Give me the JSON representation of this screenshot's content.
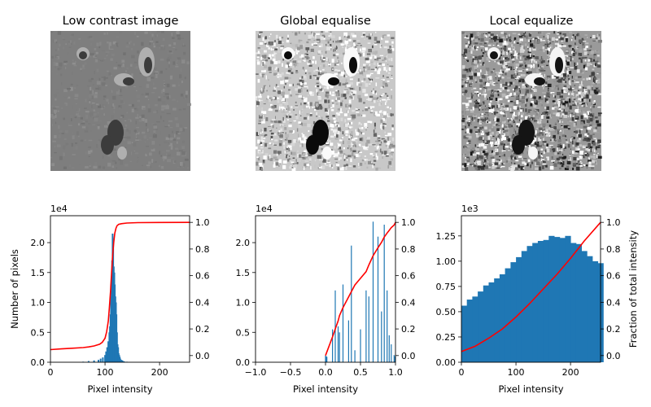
{
  "chart_data": [
    {
      "type": "image",
      "title": "Low contrast image",
      "style": "low-contrast grayscale lunar surface"
    },
    {
      "type": "image",
      "title": "Global equalise",
      "style": "high-contrast grayscale lunar surface"
    },
    {
      "type": "image",
      "title": "Local equalize",
      "style": "locally equalized grayscale lunar surface"
    },
    {
      "type": "bar",
      "xlabel": "Pixel intensity",
      "ylabel": "Number of pixels",
      "xlim": [
        0,
        255
      ],
      "ylim": [
        0,
        24500
      ],
      "y_exponent_label": "1e4",
      "xticks": [
        "0",
        "100",
        "200"
      ],
      "yticks": [
        "0.0",
        "0.5",
        "1.0",
        "1.5",
        "2.0"
      ],
      "y2ticks": [
        "0.0",
        "0.2",
        "0.4",
        "0.6",
        "0.8",
        "1.0"
      ],
      "histogram": {
        "color": "#1f77b4",
        "bins_x": [
          60,
          70,
          80,
          88,
          92,
          96,
          100,
          102,
          104,
          106,
          108,
          109,
          110,
          111,
          112,
          113,
          114,
          115,
          116,
          117,
          118,
          119,
          120,
          121,
          122,
          123,
          124,
          125,
          126,
          127,
          128,
          130,
          132,
          135,
          140
        ],
        "bins_y": [
          100,
          200,
          300,
          400,
          600,
          800,
          1200,
          1800,
          2500,
          3500,
          5000,
          6000,
          8000,
          11000,
          14000,
          17000,
          21500,
          20000,
          16000,
          15000,
          13000,
          11000,
          10000,
          8000,
          5000,
          3000,
          2500,
          1500,
          1200,
          900,
          600,
          400,
          300,
          150,
          80
        ]
      },
      "cdf": {
        "color": "#ff0000",
        "x": [
          0,
          20,
          40,
          60,
          70,
          80,
          90,
          95,
          100,
          103,
          106,
          108,
          110,
          112,
          114,
          116,
          118,
          120,
          122,
          125,
          130,
          140,
          160,
          200,
          255
        ],
        "y": [
          0.045,
          0.05,
          0.055,
          0.06,
          0.065,
          0.072,
          0.085,
          0.1,
          0.13,
          0.18,
          0.26,
          0.36,
          0.48,
          0.62,
          0.75,
          0.85,
          0.92,
          0.955,
          0.975,
          0.985,
          0.99,
          0.995,
          0.998,
          0.999,
          1.0
        ]
      }
    },
    {
      "type": "bar",
      "xlabel": "Pixel intensity",
      "xlim": [
        -1.0,
        1.0
      ],
      "ylim": [
        0,
        24500
      ],
      "y_exponent_label": "1e4",
      "xticks": [
        "−1.0",
        "−0.5",
        "0.0",
        "0.5",
        "1.0"
      ],
      "yticks": [
        "0.0",
        "0.5",
        "1.0",
        "1.5",
        "2.0"
      ],
      "y2ticks": [
        "0.0",
        "0.2",
        "0.4",
        "0.6",
        "0.8",
        "1.0"
      ],
      "histogram": {
        "color": "#1f77b4",
        "bins_x": [
          0.0,
          0.01,
          0.02,
          0.1,
          0.14,
          0.18,
          0.2,
          0.25,
          0.33,
          0.37,
          0.42,
          0.5,
          0.58,
          0.62,
          0.68,
          0.75,
          0.8,
          0.84,
          0.88,
          0.91,
          0.94,
          0.98,
          0.995
        ],
        "bins_y": [
          1100,
          1000,
          900,
          5500,
          12000,
          6000,
          5000,
          13000,
          7000,
          19500,
          2000,
          5500,
          12000,
          11000,
          23500,
          21000,
          8500,
          23000,
          12000,
          4500,
          3000,
          1200,
          1000
        ]
      },
      "cdf": {
        "color": "#ff0000",
        "x": [
          0.0,
          0.1,
          0.14,
          0.14,
          0.18,
          0.18,
          0.2,
          0.2,
          0.25,
          0.25,
          0.33,
          0.33,
          0.37,
          0.37,
          0.42,
          0.42,
          0.5,
          0.5,
          0.58,
          0.58,
          0.62,
          0.62,
          0.68,
          0.68,
          0.75,
          0.75,
          0.8,
          0.8,
          0.84,
          0.84,
          0.88,
          0.88,
          0.91,
          0.91,
          0.94,
          0.94,
          0.98,
          0.98,
          1.0
        ],
        "y": [
          0.0,
          0.14,
          0.2,
          0.2,
          0.26,
          0.26,
          0.3,
          0.3,
          0.36,
          0.36,
          0.44,
          0.44,
          0.48,
          0.48,
          0.53,
          0.53,
          0.58,
          0.58,
          0.63,
          0.63,
          0.68,
          0.68,
          0.75,
          0.75,
          0.81,
          0.81,
          0.85,
          0.85,
          0.89,
          0.89,
          0.92,
          0.92,
          0.94,
          0.94,
          0.96,
          0.96,
          0.98,
          0.98,
          1.0
        ]
      }
    },
    {
      "type": "bar",
      "xlabel": "Pixel intensity",
      "ylabel": "Fraction of total intensity",
      "xlim": [
        0,
        255
      ],
      "ylim": [
        0,
        1450
      ],
      "y_exponent_label": "1e3",
      "xticks": [
        "0",
        "100",
        "200"
      ],
      "yticks": [
        "0.00",
        "0.25",
        "0.50",
        "0.75",
        "1.00",
        "1.25"
      ],
      "y2ticks": [
        "0.0",
        "0.2",
        "0.4",
        "0.6",
        "0.8",
        "1.0"
      ],
      "histogram": {
        "color": "#1f77b4",
        "bins_x": [
          0,
          10,
          20,
          30,
          40,
          50,
          60,
          70,
          80,
          90,
          100,
          110,
          120,
          130,
          140,
          150,
          160,
          170,
          180,
          190,
          200,
          210,
          220,
          230,
          240,
          250
        ],
        "bins_y": [
          560,
          620,
          650,
          700,
          760,
          790,
          830,
          870,
          930,
          990,
          1040,
          1100,
          1150,
          1180,
          1200,
          1210,
          1250,
          1240,
          1230,
          1250,
          1180,
          1170,
          1100,
          1050,
          1000,
          980
        ]
      },
      "cdf": {
        "color": "#ff0000",
        "x": [
          0,
          25,
          50,
          75,
          100,
          125,
          150,
          175,
          200,
          225,
          255
        ],
        "y": [
          0.03,
          0.07,
          0.13,
          0.2,
          0.29,
          0.39,
          0.5,
          0.61,
          0.73,
          0.86,
          1.0
        ]
      }
    }
  ]
}
